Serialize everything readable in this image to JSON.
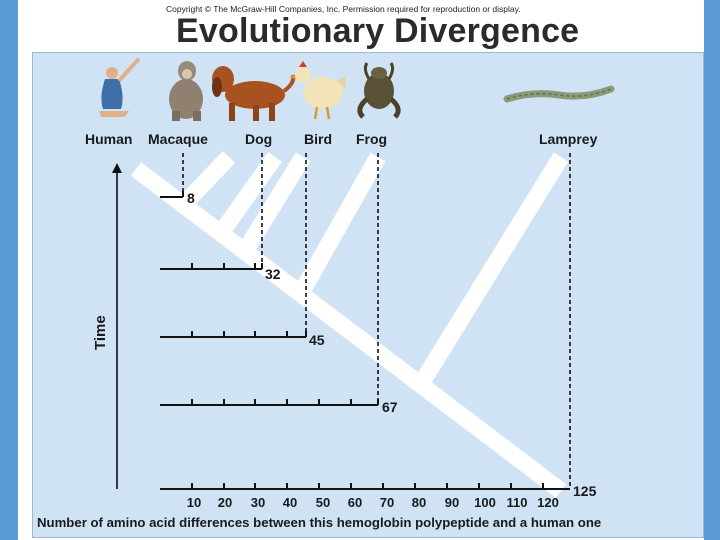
{
  "copyright": "Copyright © The McGraw-Hill Companies, Inc. Permission required for reproduction or display.",
  "title": "Evolutionary Divergence",
  "species": [
    {
      "name": "Human",
      "difference": null,
      "icon": "human-icon"
    },
    {
      "name": "Macaque",
      "difference": 8,
      "icon": "macaque-icon"
    },
    {
      "name": "Dog",
      "difference": 32,
      "icon": "dog-icon"
    },
    {
      "name": "Bird",
      "difference": 45,
      "icon": "bird-icon"
    },
    {
      "name": "Frog",
      "difference": 67,
      "icon": "frog-icon"
    },
    {
      "name": "Lamprey",
      "difference": 125,
      "icon": "lamprey-icon"
    }
  ],
  "y_axis_label": "Time",
  "x_ticks": [
    "10",
    "20",
    "30",
    "40",
    "50",
    "60",
    "70",
    "80",
    "90",
    "100",
    "110",
    "120"
  ],
  "x_axis_label": "Number of amino acid differences between this hemoglobin polypeptide and a human one",
  "colors": {
    "page_background": "#5b9bd5",
    "figure_background": "#cfe3f5",
    "tree_branches": "#ffffff",
    "text": "#1a1a1a"
  }
}
